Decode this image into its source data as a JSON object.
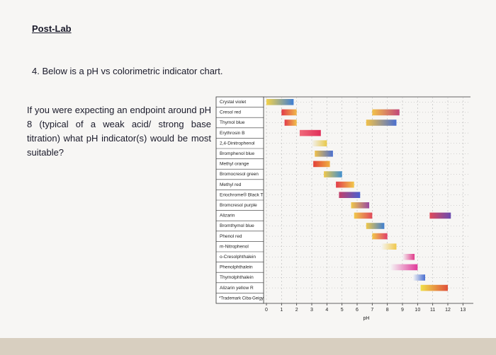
{
  "header": {
    "title": "Post-Lab"
  },
  "question": {
    "heading": "4. Below is a pH vs colorimetric indicator chart.",
    "body": "If you were expecting an endpoint around pH 8 (typical of a weak acid/ strong base titration) what pH indicator(s) would be most suitable?"
  },
  "chart_data": {
    "type": "range",
    "categories": [
      "Crystal violet",
      "Cresol red",
      "Thymol blue",
      "Erythrosin B",
      "2,4-Dinitrophenol",
      "Bromphenol blue",
      "Methyl orange",
      "Bromocresol green",
      "Methyl red",
      "Eriochrome® Black T",
      "Bromcresol purple",
      "Alizarin",
      "Bromthymol blue",
      "Phenol red",
      "m-Nitrophenol",
      "o-Cresolphthalein",
      "Phenolphthalein",
      "Thymolphthalein",
      "Alizarin yellow R"
    ],
    "footnote": "*Trademark Ciba-Geigy",
    "ranges": [
      [
        [
          0,
          1.8
        ]
      ],
      [
        [
          1,
          2
        ],
        [
          7,
          8.8
        ]
      ],
      [
        [
          1.2,
          2
        ],
        [
          6.6,
          8.6
        ]
      ],
      [
        [
          2.2,
          3.6
        ]
      ],
      [
        [
          3,
          4
        ]
      ],
      [
        [
          3.2,
          4.4
        ]
      ],
      [
        [
          3.1,
          4.2
        ]
      ],
      [
        [
          3.8,
          5
        ]
      ],
      [
        [
          4.6,
          5.8
        ]
      ],
      [
        [
          4.8,
          6.2
        ]
      ],
      [
        [
          5.6,
          6.8
        ]
      ],
      [
        [
          5.8,
          7
        ],
        [
          10.8,
          12.2
        ]
      ],
      [
        [
          6.6,
          7.8
        ]
      ],
      [
        [
          7,
          8
        ]
      ],
      [
        [
          7.6,
          8.6
        ]
      ],
      [
        [
          9,
          9.8
        ]
      ],
      [
        [
          8.2,
          10
        ]
      ],
      [
        [
          9.7,
          10.5
        ]
      ],
      [
        [
          10.2,
          12
        ]
      ]
    ],
    "colors": [
      [
        [
          "#f3d24a",
          "#3f7fd4"
        ]
      ],
      [
        [
          "#e23c4a",
          "#f0b84a"
        ],
        [
          "#f2c24a",
          "#c2477a"
        ]
      ],
      [
        [
          "#e23c4a",
          "#f0c04a"
        ],
        [
          "#f0c04a",
          "#4a6fd0"
        ]
      ],
      [
        [
          "#f06a7a",
          "#e0305a"
        ]
      ],
      [
        [
          "#f2f2f2",
          "#e8c84a"
        ]
      ],
      [
        [
          "#f0c04a",
          "#4a6fd0"
        ]
      ],
      [
        [
          "#e2403a",
          "#f0b040"
        ]
      ],
      [
        [
          "#f0c84a",
          "#3f8fd0"
        ]
      ],
      [
        [
          "#e23c4a",
          "#f2c84a"
        ]
      ],
      [
        [
          "#c2406a",
          "#4a5fd0"
        ]
      ],
      [
        [
          "#f0c84a",
          "#9a4aa0"
        ]
      ],
      [
        [
          "#f0c84a",
          "#e04a5a"
        ],
        [
          "#e04a5a",
          "#6a4ab0"
        ]
      ],
      [
        [
          "#f0c84a",
          "#3f7fd0"
        ]
      ],
      [
        [
          "#f2c84a",
          "#e0406a"
        ]
      ],
      [
        [
          "#f5f5f5",
          "#f0c84a"
        ]
      ],
      [
        [
          "#f5f5f5",
          "#e03a8a"
        ]
      ],
      [
        [
          "#f5f5f5",
          "#e03a9a"
        ]
      ],
      [
        [
          "#f5f5f5",
          "#4a6fd0"
        ]
      ],
      [
        [
          "#f0e04a",
          "#e0503a"
        ]
      ]
    ],
    "xlabel": "pH",
    "xlim": [
      0,
      13.5
    ],
    "xticks": [
      0,
      1,
      2,
      3,
      4,
      5,
      6,
      7,
      8,
      9,
      10,
      11,
      12,
      13
    ],
    "grid": true
  }
}
